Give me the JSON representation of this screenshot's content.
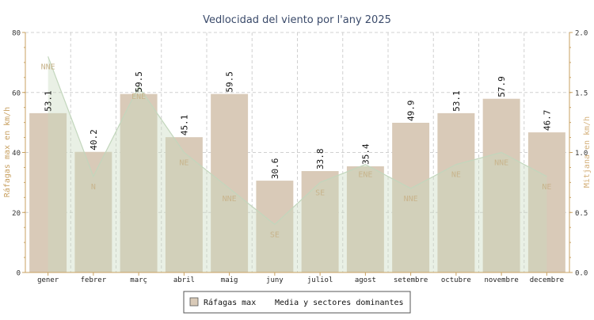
{
  "chart_data": {
    "type": "bar",
    "title": "Vedlocidad del viento por l'any 2025",
    "categories": [
      "gener",
      "febrer",
      "març",
      "abril",
      "maig",
      "juny",
      "juliol",
      "agost",
      "setembre",
      "octubre",
      "novembre",
      "decembre"
    ],
    "ylabel": "Ráfagas max en km/h",
    "y2label": "Mitjana en km/h",
    "ylim": [
      0,
      80
    ],
    "y2lim": [
      0,
      2.0
    ],
    "yticks": [
      "0",
      "20",
      "40",
      "60",
      "80"
    ],
    "y2ticks": [
      "0.0",
      "0.5",
      "1.0",
      "1.5",
      "2.0"
    ],
    "grid": true,
    "legend_position": "bottom-center",
    "series": [
      {
        "name": "Ráfagas max",
        "kind": "bar",
        "axis": "left",
        "values": [
          53.1,
          40.2,
          59.5,
          45.1,
          59.5,
          30.6,
          33.8,
          35.4,
          49.9,
          53.1,
          57.9,
          46.7
        ],
        "labels": [
          "53.1",
          "40.2",
          "59.5",
          "45.1",
          "59.5",
          "30.6",
          "33.8",
          "35.4",
          "49.9",
          "53.1",
          "57.9",
          "46.7"
        ],
        "color": "#d9cab8"
      },
      {
        "name": "Media y sectores dominantes",
        "kind": "area",
        "axis": "right",
        "values": [
          1.8,
          0.8,
          1.55,
          1.0,
          0.7,
          0.4,
          0.75,
          0.9,
          0.7,
          0.9,
          1.0,
          0.8
        ],
        "sectors": [
          "NNE",
          "N",
          "ENE",
          "NE",
          "NNE",
          "SE",
          "SE",
          "ENE",
          "NNE",
          "NE",
          "NNE",
          "NE"
        ],
        "color": "#c8d9bf"
      }
    ]
  },
  "colors": {
    "title": "#3a4a6a",
    "axis": "#c8a060",
    "grid": "#d0d0d0",
    "bar": "#d9cab8",
    "area_fill": "#c8d9bf",
    "area_line": "#c2d6bc",
    "sector_text": "#c8b48c",
    "right_axis_label": "#d4b07a"
  }
}
